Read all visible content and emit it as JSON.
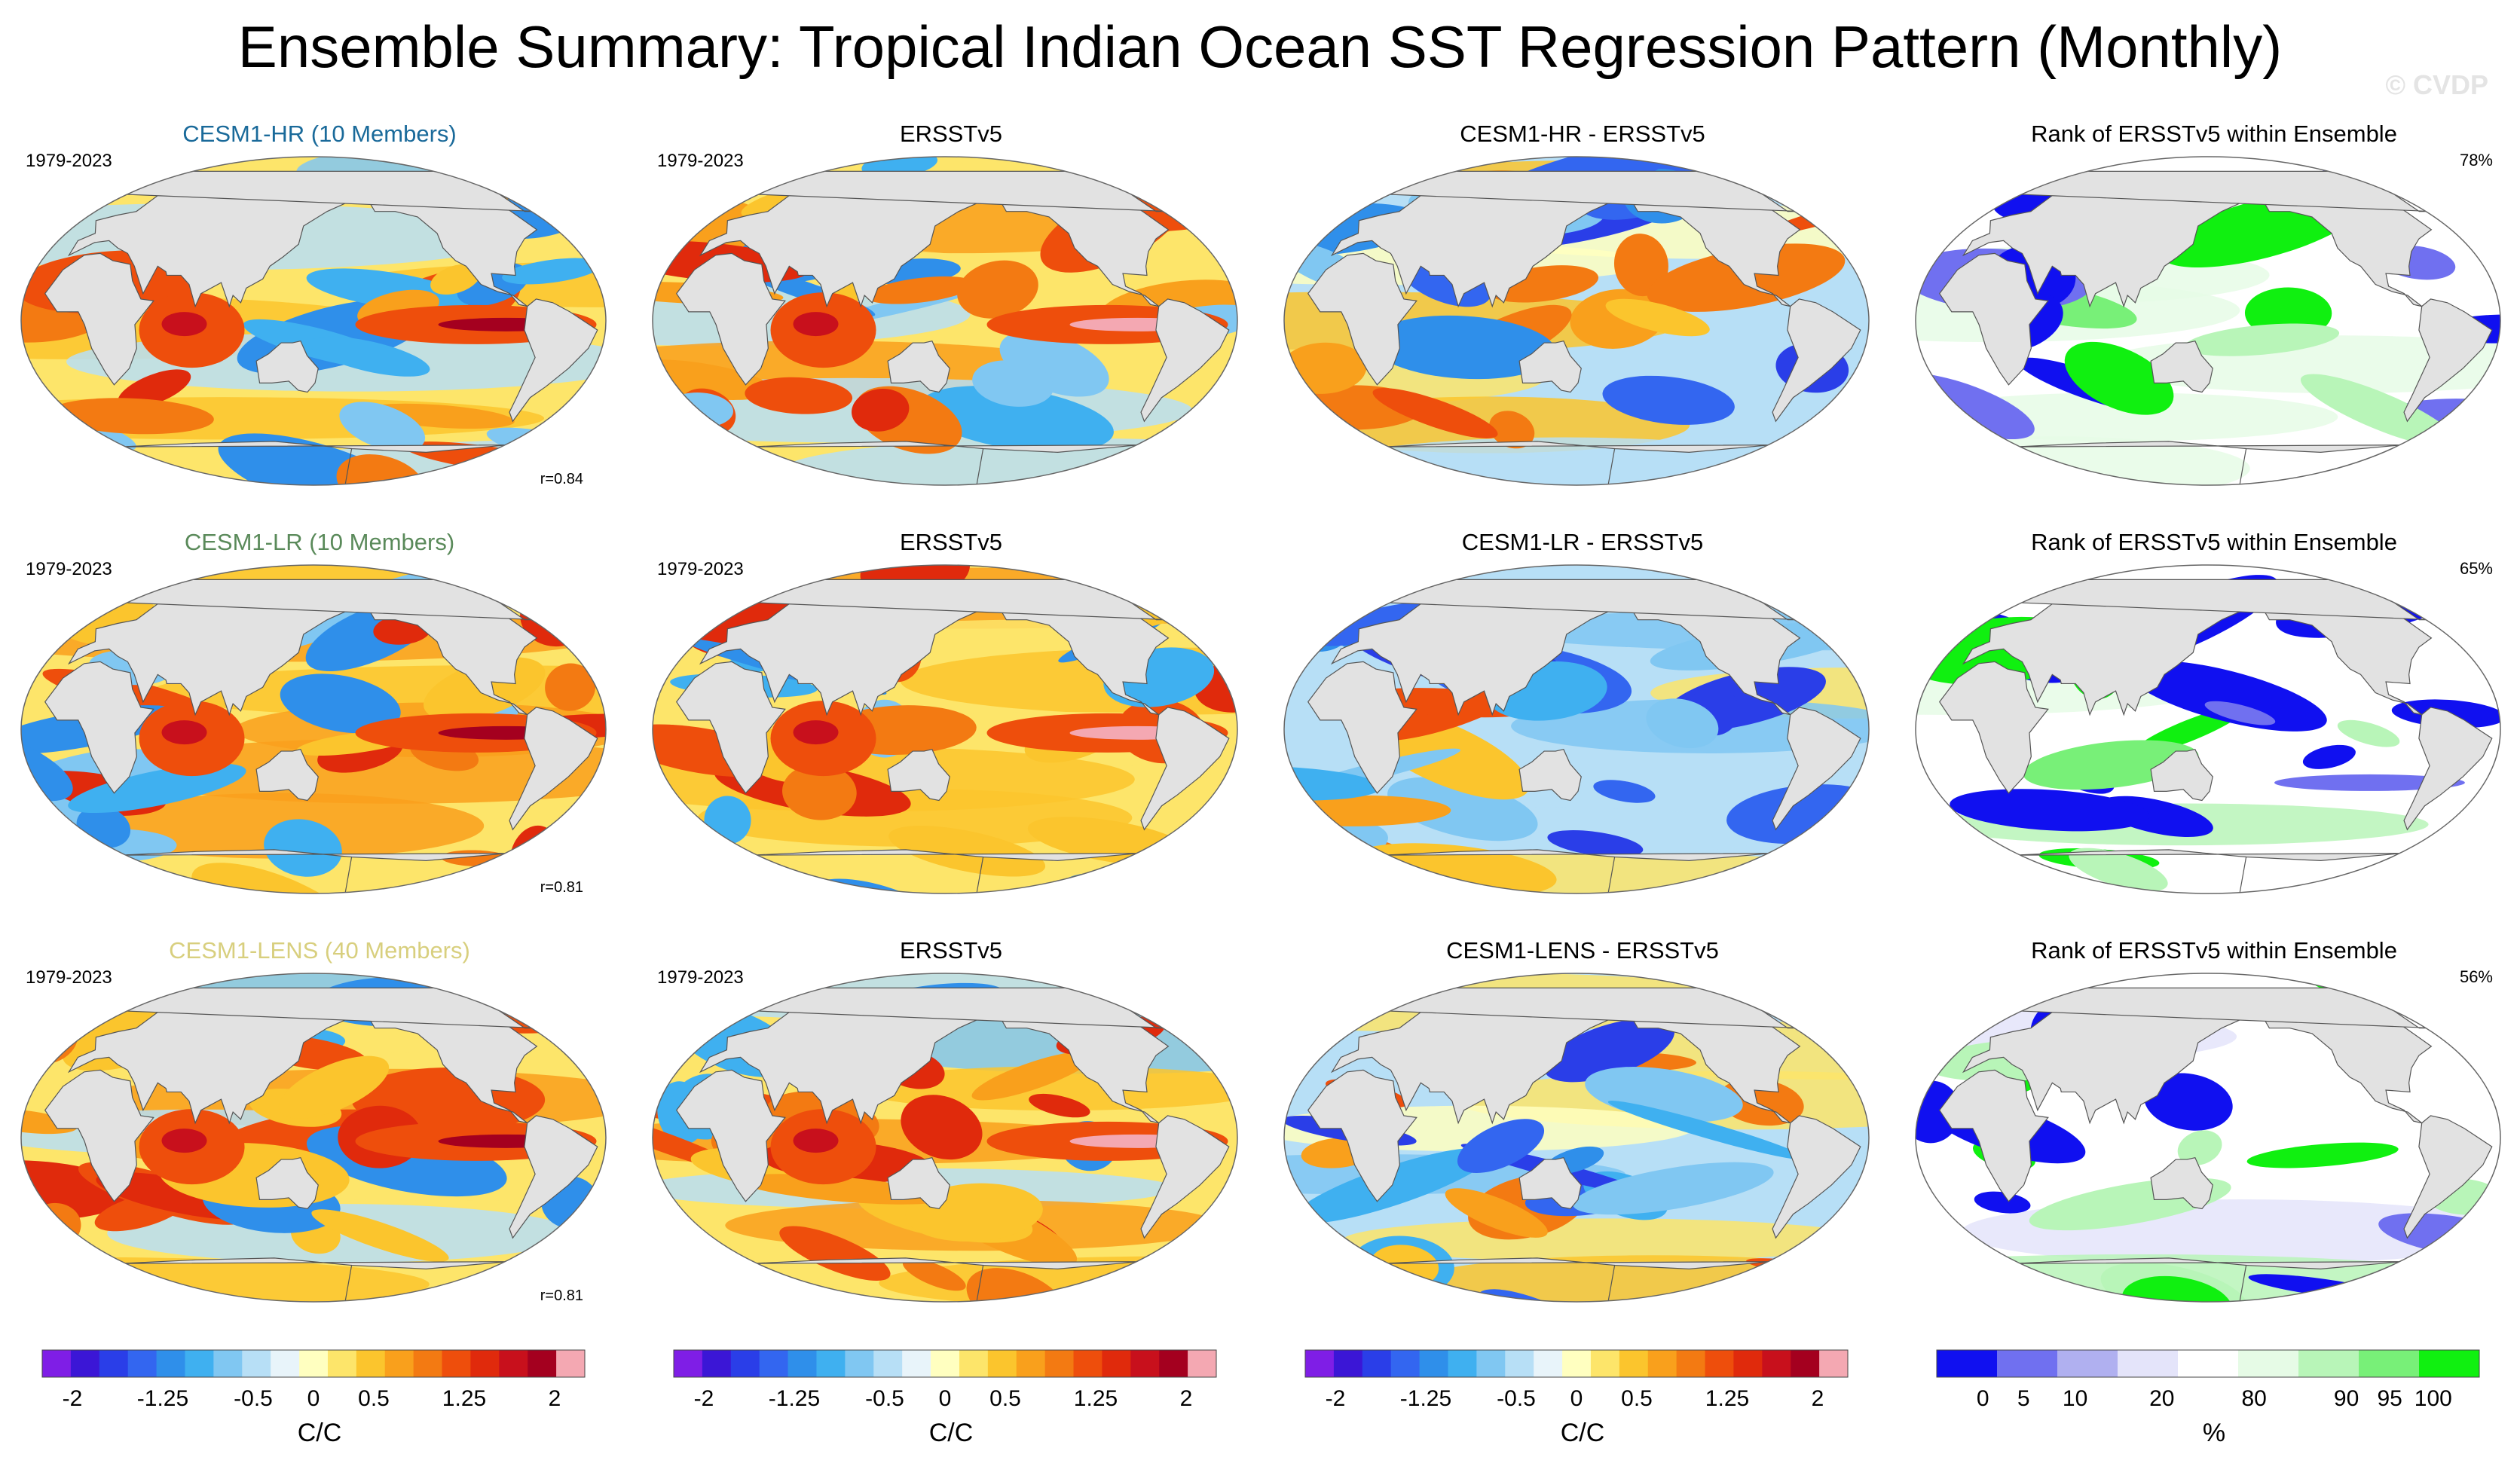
{
  "title": "Ensemble Summary: Tropical Indian Ocean SST Regression Pattern (Monthly)",
  "watermark": "© CVDP",
  "colors": {
    "diverging": [
      "#7f1ee6",
      "#3b16d6",
      "#2a3ee8",
      "#3366f0",
      "#2f8fea",
      "#3fb0f0",
      "#80c7f2",
      "#b7dff6",
      "#e8f4fa",
      "#ffffc0",
      "#fde56a",
      "#fbc52d",
      "#f9a01c",
      "#f37a12",
      "#ee4e0c",
      "#e02a0c",
      "#c8101c",
      "#a4001f",
      "#f4a8b2"
    ],
    "rank": [
      "#1010f0",
      "#7070f0",
      "#b0b0f0",
      "#e4e4fa",
      "#ffffff",
      "#e6fbe6",
      "#b8f5b8",
      "#78f078",
      "#10f010"
    ],
    "land": "#e2e2e2",
    "hr_label": "#1a6a9a",
    "lr_label": "#5a8a5a",
    "lens_label": "#d8cf7e"
  },
  "panels": [
    {
      "title": "CESM1-HR (10 Members)",
      "title_color": "#1a6a9a",
      "years": "1979-2023",
      "corner": "r=0.84",
      "kind": "model",
      "seed": 11
    },
    {
      "title": "ERSSTv5",
      "title_color": "#000000",
      "years": "1979-2023",
      "corner": "",
      "kind": "obs",
      "seed": 21
    },
    {
      "title": "CESM1-HR - ERSSTv5",
      "title_color": "#000000",
      "years": "",
      "corner": "",
      "kind": "diff",
      "seed": 31
    },
    {
      "title": "Rank of ERSSTv5 within Ensemble",
      "title_color": "#000000",
      "years": "",
      "corner": "78%",
      "kind": "rank",
      "seed": 41
    },
    {
      "title": "CESM1-LR (10 Members)",
      "title_color": "#5a8a5a",
      "years": "1979-2023",
      "corner": "r=0.81",
      "kind": "model",
      "seed": 12
    },
    {
      "title": "ERSSTv5",
      "title_color": "#000000",
      "years": "1979-2023",
      "corner": "",
      "kind": "obs",
      "seed": 22
    },
    {
      "title": "CESM1-LR - ERSSTv5",
      "title_color": "#000000",
      "years": "",
      "corner": "",
      "kind": "diff",
      "seed": 32
    },
    {
      "title": "Rank of ERSSTv5 within Ensemble",
      "title_color": "#000000",
      "years": "",
      "corner": "65%",
      "kind": "rank",
      "seed": 42
    },
    {
      "title": "CESM1-LENS (40 Members)",
      "title_color": "#d8cf7e",
      "years": "1979-2023",
      "corner": "r=0.81",
      "kind": "model",
      "seed": 13
    },
    {
      "title": "ERSSTv5",
      "title_color": "#000000",
      "years": "1979-2023",
      "corner": "",
      "kind": "obs",
      "seed": 23
    },
    {
      "title": "CESM1-LENS - ERSSTv5",
      "title_color": "#000000",
      "years": "",
      "corner": "",
      "kind": "diff",
      "seed": 33
    },
    {
      "title": "Rank of ERSSTv5 within Ensemble",
      "title_color": "#000000",
      "years": "",
      "corner": "56%",
      "kind": "rank",
      "seed": 43
    }
  ],
  "colorbars": [
    {
      "kind": "diverging",
      "ticks": [
        "-2",
        "-1.25",
        "-0.5",
        "0",
        "0.5",
        "1.25",
        "2"
      ],
      "units": "C/C"
    },
    {
      "kind": "diverging",
      "ticks": [
        "-2",
        "-1.25",
        "-0.5",
        "0",
        "0.5",
        "1.25",
        "2"
      ],
      "units": "C/C"
    },
    {
      "kind": "diverging",
      "ticks": [
        "-2",
        "-1.25",
        "-0.5",
        "0",
        "0.5",
        "1.25",
        "2"
      ],
      "units": "C/C"
    },
    {
      "kind": "rank",
      "ticks": [
        "0",
        "5",
        "10",
        "20",
        "80",
        "90",
        "95",
        "100"
      ],
      "units": "%"
    }
  ]
}
